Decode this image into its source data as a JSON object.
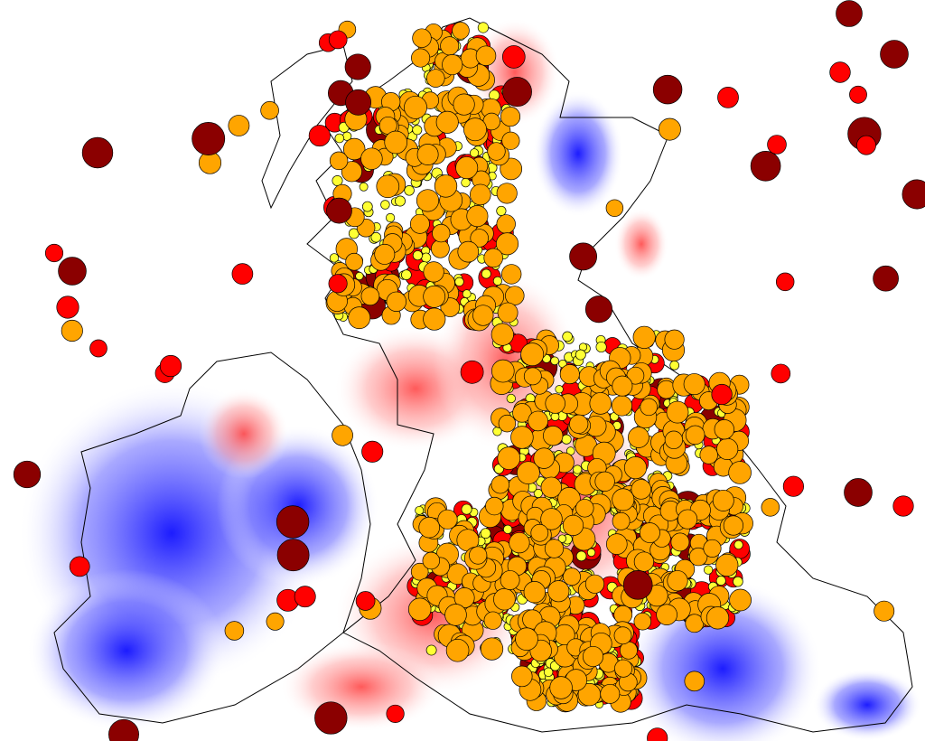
{
  "map": {
    "background_color": "#ffffff",
    "coastline_color": "#000000",
    "heatmap": {
      "positive_color": "#ff0000",
      "negative_color": "#0000ff",
      "neutral_color": "#ffffff"
    },
    "marker_classes": [
      {
        "class": "dark-red",
        "color": "#8b0000",
        "size": "large"
      },
      {
        "class": "red",
        "color": "#ff0000",
        "size": "medium"
      },
      {
        "class": "orange",
        "color": "#ffa500",
        "size": "medium"
      },
      {
        "class": "yellow",
        "color": "#ffff33",
        "size": "small"
      }
    ],
    "marker_outline_color": "#000000"
  }
}
